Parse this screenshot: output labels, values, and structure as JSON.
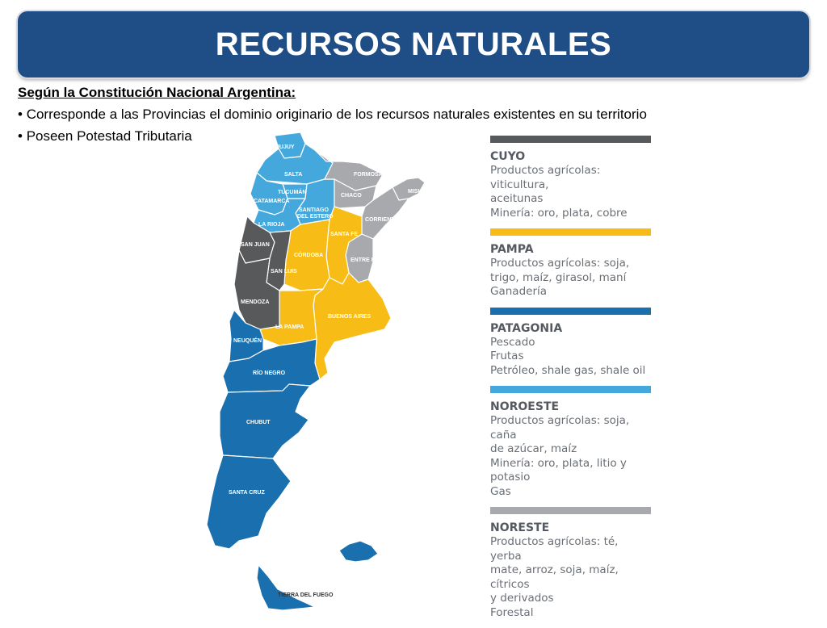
{
  "title": "RECURSOS NATURALES",
  "intro": {
    "heading": "Según la Constitución Nacional Argentina:",
    "bullets": [
      "Corresponde a las Provincias el dominio originario de los recursos naturales existentes en su territorio",
      "Poseen Potestad Tributaria"
    ]
  },
  "colors": {
    "cuyo": "#58595b",
    "pampa": "#f7bd16",
    "patagonia": "#1a6fae",
    "noroeste": "#45a8dc",
    "noreste": "#a7a9ac",
    "title_bar": "#1f4e86"
  },
  "map": {
    "provinces": [
      {
        "name": "JUJUY",
        "region": "noroeste"
      },
      {
        "name": "SALTA",
        "region": "noroeste"
      },
      {
        "name": "FORMOSA",
        "region": "noreste"
      },
      {
        "name": "TUCUMÁN",
        "region": "noroeste"
      },
      {
        "name": "MISIONES",
        "region": "noreste"
      },
      {
        "name": "CATAMARCA",
        "region": "noroeste"
      },
      {
        "name": "CHACO",
        "region": "noreste"
      },
      {
        "name": "SANTIAGO DEL ESTERO",
        "region": "noroeste"
      },
      {
        "name": "CORRIENTES",
        "region": "noreste"
      },
      {
        "name": "LA RIOJA",
        "region": "noroeste"
      },
      {
        "name": "SANTA FE",
        "region": "pampa"
      },
      {
        "name": "SAN JUAN",
        "region": "cuyo"
      },
      {
        "name": "CÓRDOBA",
        "region": "pampa"
      },
      {
        "name": "ENTRE RÍOS",
        "region": "noreste"
      },
      {
        "name": "SAN LUIS",
        "region": "cuyo"
      },
      {
        "name": "MENDOZA",
        "region": "cuyo"
      },
      {
        "name": "BUENOS AIRES",
        "region": "pampa"
      },
      {
        "name": "LA PAMPA",
        "region": "pampa"
      },
      {
        "name": "NEUQUÉN",
        "region": "patagonia"
      },
      {
        "name": "RÍO NEGRO",
        "region": "patagonia"
      },
      {
        "name": "CHUBUT",
        "region": "patagonia"
      },
      {
        "name": "SANTA CRUZ",
        "region": "patagonia"
      },
      {
        "name": "TIERRA DEL FUEGO",
        "region": "patagonia"
      }
    ]
  },
  "legend": {
    "cuyo": {
      "name": "CUYO",
      "lines": [
        "Productos agrícolas: viticultura,",
        "aceitunas",
        "Minería: oro, plata, cobre"
      ]
    },
    "pampa": {
      "name": "PAMPA",
      "lines": [
        "Productos agrícolas: soja,",
        "trigo, maíz, girasol, maní",
        "Ganadería"
      ]
    },
    "patagonia": {
      "name": "PATAGONIA",
      "lines": [
        "Pescado",
        "Frutas",
        "Petróleo, shale gas, shale oil"
      ]
    },
    "noroeste": {
      "name": "NOROESTE",
      "lines": [
        "Productos agrícolas: soja, caña",
        "de azúcar, maíz",
        "Minería: oro, plata, litio y potasio",
        "Gas"
      ]
    },
    "noreste": {
      "name": "NORESTE",
      "lines": [
        "Productos agrícolas: té, yerba",
        "mate, arroz, soja, maíz, cítricos",
        "y derivados",
        "Forestal"
      ]
    }
  }
}
